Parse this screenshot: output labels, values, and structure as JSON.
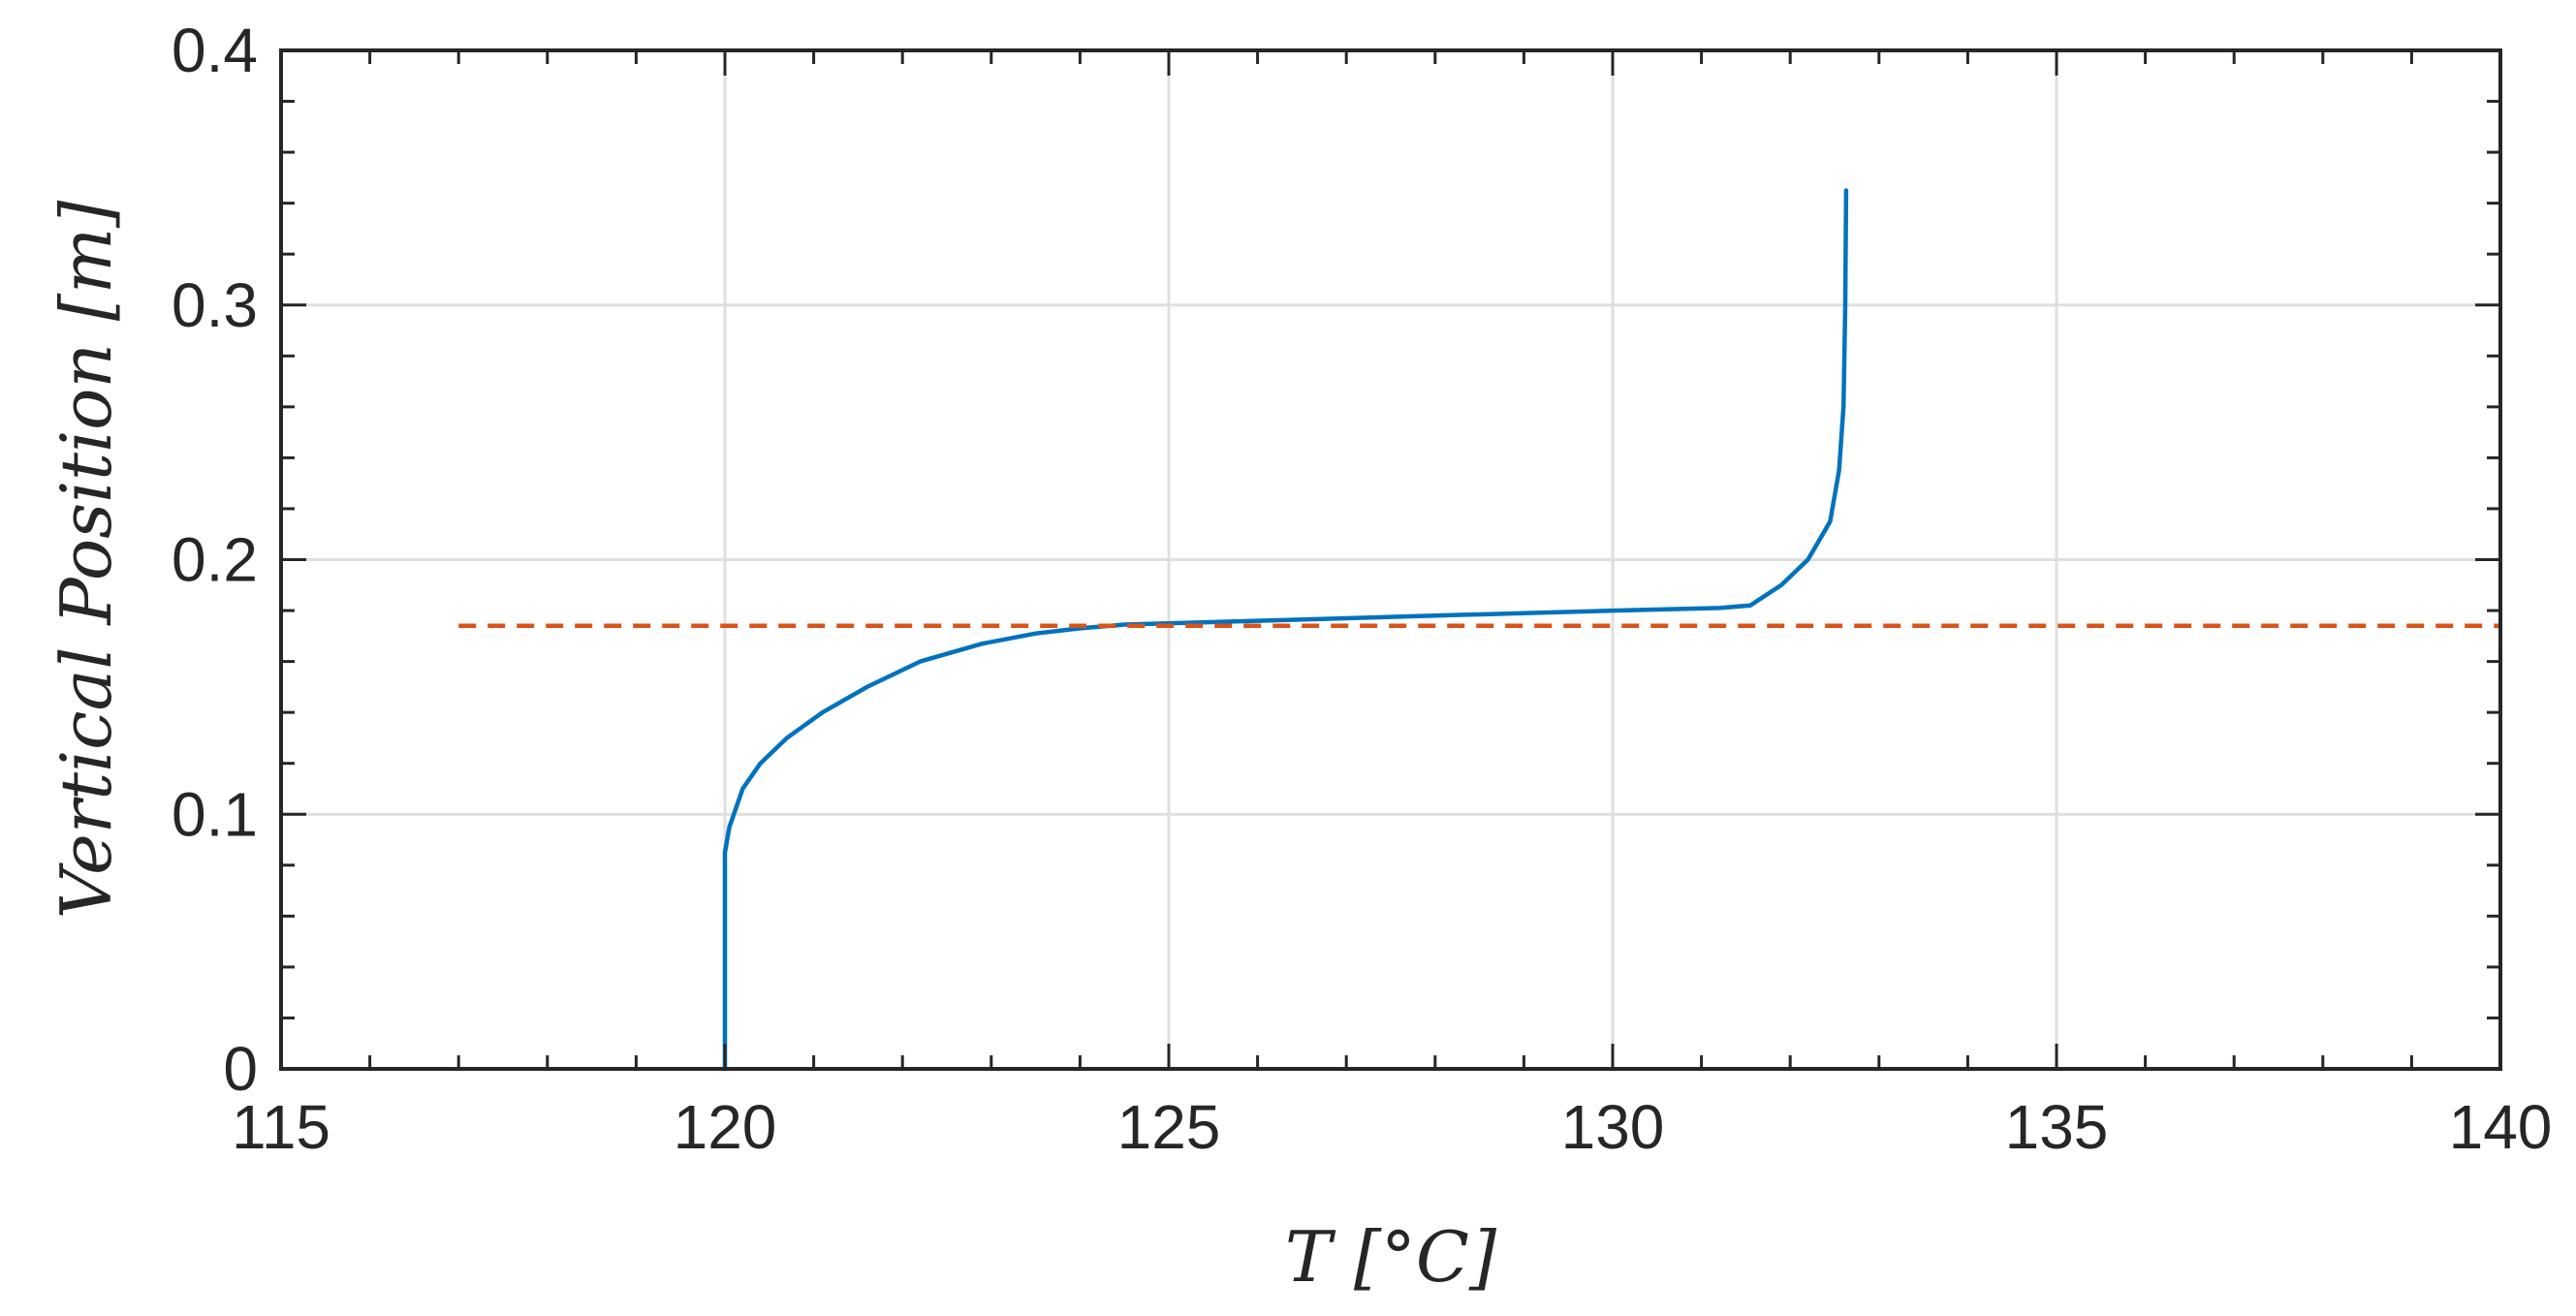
{
  "chart_data": {
    "type": "line",
    "title": "",
    "xlabel": "T [°C]",
    "ylabel": "Vertical Position [m]",
    "xlim": [
      115,
      140
    ],
    "ylim": [
      0,
      0.4
    ],
    "x_ticks": [
      115,
      120,
      125,
      130,
      135,
      140
    ],
    "y_ticks": [
      0,
      0.1,
      0.2,
      0.3,
      0.4
    ],
    "x_tick_labels": [
      "115",
      "120",
      "125",
      "130",
      "135",
      "140"
    ],
    "y_tick_labels": [
      "0",
      "0.1",
      "0.2",
      "0.3",
      "0.4"
    ],
    "grid": true,
    "legend": "none",
    "series": [
      {
        "color": "#0072bd",
        "style": "solid",
        "x": [
          120.0,
          120.0,
          120.0,
          120.05,
          120.1,
          120.2,
          120.4,
          120.7,
          121.1,
          121.6,
          122.2,
          122.9,
          123.5,
          124.0,
          124.5,
          126.0,
          128.0,
          130.0,
          131.2,
          131.55,
          131.9,
          132.2,
          132.45,
          132.55,
          132.6,
          132.62,
          132.63
        ],
        "y": [
          0.0,
          0.05,
          0.085,
          0.095,
          0.1,
          0.11,
          0.12,
          0.13,
          0.14,
          0.15,
          0.16,
          0.167,
          0.171,
          0.173,
          0.1745,
          0.176,
          0.178,
          0.18,
          0.181,
          0.182,
          0.19,
          0.2,
          0.215,
          0.235,
          0.26,
          0.3,
          0.345
        ]
      },
      {
        "color": "#d95319",
        "style": "dashed",
        "x": [
          117,
          140
        ],
        "y": [
          0.174,
          0.174
        ]
      }
    ]
  }
}
